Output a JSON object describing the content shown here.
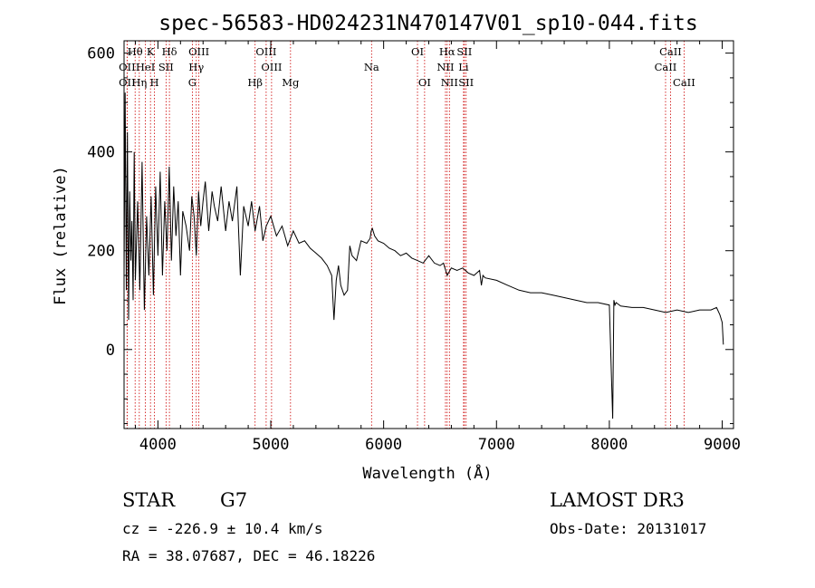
{
  "chart_data": {
    "type": "line",
    "title": "spec-56583-HD024231N470147V01_sp10-044.fits",
    "xlabel": "Wavelength (Å)",
    "ylabel": "Flux (relative)",
    "xlim": [
      3700,
      9100
    ],
    "ylim": [
      -160,
      625
    ],
    "xticks": [
      4000,
      5000,
      6000,
      7000,
      8000,
      9000
    ],
    "yticks": [
      0,
      200,
      400,
      600
    ],
    "series": [
      {
        "name": "flux",
        "x": [
          3700,
          3710,
          3720,
          3730,
          3740,
          3750,
          3760,
          3770,
          3780,
          3790,
          3800,
          3820,
          3840,
          3860,
          3880,
          3900,
          3920,
          3940,
          3960,
          3980,
          4000,
          4020,
          4040,
          4060,
          4080,
          4100,
          4120,
          4140,
          4160,
          4180,
          4200,
          4220,
          4250,
          4280,
          4300,
          4320,
          4340,
          4360,
          4380,
          4400,
          4420,
          4450,
          4480,
          4500,
          4530,
          4560,
          4600,
          4630,
          4660,
          4700,
          4730,
          4760,
          4800,
          4830,
          4861,
          4900,
          4930,
          4960,
          5000,
          5050,
          5100,
          5150,
          5200,
          5250,
          5300,
          5350,
          5400,
          5450,
          5500,
          5540,
          5560,
          5580,
          5600,
          5620,
          5650,
          5680,
          5700,
          5720,
          5760,
          5800,
          5850,
          5880,
          5890,
          5900,
          5920,
          5950,
          6000,
          6050,
          6100,
          6150,
          6200,
          6250,
          6300,
          6350,
          6400,
          6450,
          6500,
          6530,
          6563,
          6600,
          6650,
          6700,
          6750,
          6800,
          6850,
          6866,
          6880,
          6900,
          7000,
          7100,
          7200,
          7300,
          7400,
          7500,
          7600,
          7700,
          7800,
          7900,
          8000,
          8030,
          8040,
          8050,
          8060,
          8100,
          8200,
          8300,
          8400,
          8500,
          8600,
          8700,
          8800,
          8900,
          8950,
          8980,
          9000,
          9010
        ],
        "y": [
          150,
          520,
          120,
          440,
          60,
          320,
          180,
          260,
          100,
          400,
          140,
          300,
          120,
          380,
          80,
          270,
          150,
          310,
          110,
          330,
          190,
          360,
          150,
          300,
          200,
          370,
          180,
          330,
          230,
          300,
          150,
          280,
          250,
          200,
          310,
          270,
          190,
          320,
          250,
          300,
          340,
          240,
          320,
          290,
          260,
          330,
          240,
          300,
          260,
          330,
          150,
          290,
          250,
          300,
          240,
          290,
          220,
          250,
          270,
          230,
          250,
          210,
          240,
          215,
          220,
          205,
          195,
          185,
          170,
          150,
          60,
          140,
          170,
          130,
          110,
          120,
          210,
          190,
          180,
          220,
          215,
          225,
          240,
          245,
          230,
          220,
          215,
          205,
          200,
          190,
          195,
          185,
          180,
          175,
          190,
          175,
          170,
          175,
          150,
          165,
          160,
          165,
          155,
          150,
          160,
          130,
          150,
          145,
          140,
          130,
          120,
          115,
          115,
          110,
          105,
          100,
          95,
          95,
          90,
          -140,
          100,
          90,
          95,
          88,
          85,
          85,
          80,
          75,
          80,
          75,
          80,
          80,
          85,
          70,
          55,
          10
        ]
      }
    ],
    "spectral_lines": [
      {
        "label": "OII",
        "wavelength": 3727,
        "row": 2
      },
      {
        "label": "OII",
        "wavelength": 3727,
        "row": 3
      },
      {
        "label": "Hθ",
        "wavelength": 3798,
        "row": 1
      },
      {
        "label": "Hη",
        "wavelength": 3835,
        "row": 3
      },
      {
        "label": "HeI",
        "wavelength": 3889,
        "row": 2
      },
      {
        "label": "K",
        "wavelength": 3934,
        "row": 1
      },
      {
        "label": "SII",
        "wavelength": 4072,
        "row": 2
      },
      {
        "label": "H",
        "wavelength": 3969,
        "row": 3
      },
      {
        "label": "Hδ",
        "wavelength": 4102,
        "row": 1
      },
      {
        "label": "OIII",
        "wavelength": 4363,
        "row": 1
      },
      {
        "label": "Hγ",
        "wavelength": 4340,
        "row": 2
      },
      {
        "label": "G",
        "wavelength": 4305,
        "row": 3
      },
      {
        "label": "Hβ",
        "wavelength": 4861,
        "row": 3
      },
      {
        "label": "OIII",
        "wavelength": 4959,
        "row": 1
      },
      {
        "label": "OIII",
        "wavelength": 5007,
        "row": 2
      },
      {
        "label": "Mg",
        "wavelength": 5175,
        "row": 3
      },
      {
        "label": "Na",
        "wavelength": 5893,
        "row": 2
      },
      {
        "label": "OI",
        "wavelength": 6300,
        "row": 1
      },
      {
        "label": "OI",
        "wavelength": 6363,
        "row": 3
      },
      {
        "label": "Hα",
        "wavelength": 6563,
        "row": 1
      },
      {
        "label": "NII",
        "wavelength": 6548,
        "row": 2
      },
      {
        "label": "NII",
        "wavelength": 6583,
        "row": 3
      },
      {
        "label": "SII",
        "wavelength": 6716,
        "row": 1
      },
      {
        "label": "Li",
        "wavelength": 6708,
        "row": 2
      },
      {
        "label": "SII",
        "wavelength": 6731,
        "row": 3
      },
      {
        "label": "CaII",
        "wavelength": 8542,
        "row": 1
      },
      {
        "label": "CaII",
        "wavelength": 8498,
        "row": 2
      },
      {
        "label": "CaII",
        "wavelength": 8662,
        "row": 3
      }
    ],
    "line_color": "#cc0000"
  },
  "info": {
    "object_class": "STAR",
    "subclass": "G7",
    "survey": "LAMOST DR3",
    "cz": "cz = -226.9 ± 10.4 km/s",
    "obs_date": "Obs-Date: 20131017",
    "coords": "RA =  38.07687, DEC =  46.18226"
  }
}
